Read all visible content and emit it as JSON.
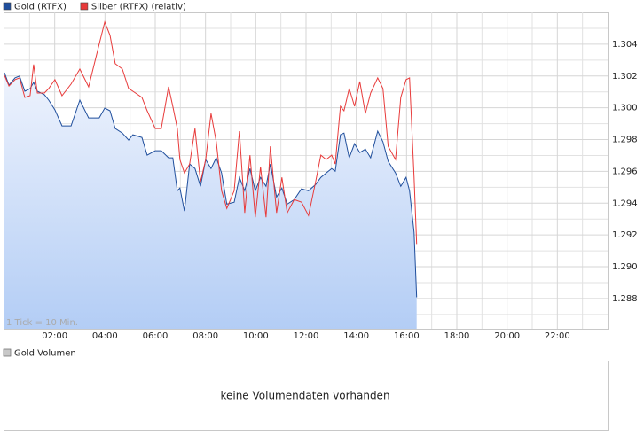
{
  "chart_data": {
    "type": "line",
    "x": [
      0,
      0.18,
      0.42,
      0.6,
      0.81,
      1.02,
      1.16,
      1.31,
      1.59,
      1.76,
      2.01,
      2.29,
      2.65,
      3.0,
      3.35,
      3.77,
      3.99,
      4.2,
      4.41,
      4.69,
      4.94,
      5.11,
      5.47,
      5.68,
      6.0,
      6.24,
      6.53,
      6.7,
      6.88,
      6.98,
      7.16,
      7.37,
      7.58,
      7.8,
      8.01,
      8.22,
      8.43,
      8.64,
      8.85,
      9.14,
      9.35,
      9.56,
      9.77,
      9.98,
      10.19,
      10.41,
      10.58,
      10.83,
      11.04,
      11.25,
      11.53,
      11.82,
      12.1,
      12.38,
      12.59,
      12.8,
      13.02,
      13.16,
      13.37,
      13.51,
      13.72,
      13.93,
      14.14,
      14.36,
      14.57,
      14.85,
      15.06,
      15.27,
      15.56,
      15.77,
      15.98,
      16.12,
      16.3,
      16.4
    ],
    "series": [
      {
        "name": "Gold (RTFX)",
        "color": "#1f4e9c",
        "area": true,
        "values": [
          1.30221,
          1.30143,
          1.30188,
          1.302,
          1.30104,
          1.3012,
          1.3016,
          1.30104,
          1.30082,
          1.30048,
          1.29987,
          1.29886,
          1.29886,
          1.30048,
          1.29936,
          1.29936,
          1.29998,
          1.29981,
          1.29869,
          1.29841,
          1.29797,
          1.2983,
          1.29813,
          1.29702,
          1.2973,
          1.2973,
          1.29685,
          1.29685,
          1.29478,
          1.29495,
          1.2935,
          1.29646,
          1.29618,
          1.29506,
          1.29674,
          1.29618,
          1.29685,
          1.2959,
          1.29394,
          1.29406,
          1.29562,
          1.29478,
          1.29618,
          1.29478,
          1.29562,
          1.29506,
          1.29646,
          1.29439,
          1.29495,
          1.29394,
          1.29422,
          1.2949,
          1.29478,
          1.29517,
          1.29562,
          1.2959,
          1.29618,
          1.29601,
          1.2983,
          1.29841,
          1.29685,
          1.29774,
          1.29718,
          1.2974,
          1.29685,
          1.29853,
          1.29786,
          1.29663,
          1.2959,
          1.29506,
          1.29562,
          1.29478,
          1.29216,
          1.28808
        ]
      },
      {
        "name": "Silber (RTFX) (relativ)",
        "color": "#e83a3a",
        "area": false,
        "values": [
          1.30204,
          1.30137,
          1.30177,
          1.30188,
          1.30065,
          1.30076,
          1.30272,
          1.30093,
          1.30093,
          1.30121,
          1.30177,
          1.30076,
          1.30149,
          1.30244,
          1.30132,
          1.304,
          1.3054,
          1.30456,
          1.30277,
          1.30244,
          1.30121,
          1.30104,
          1.30065,
          1.29981,
          1.29869,
          1.29869,
          1.30132,
          1.30009,
          1.29869,
          1.29674,
          1.2959,
          1.29646,
          1.29869,
          1.29534,
          1.29674,
          1.29964,
          1.29786,
          1.29478,
          1.29367,
          1.29478,
          1.29853,
          1.29339,
          1.29702,
          1.29311,
          1.29629,
          1.29311,
          1.29758,
          1.29339,
          1.29562,
          1.29339,
          1.29422,
          1.29406,
          1.29322,
          1.29534,
          1.29702,
          1.29674,
          1.29702,
          1.29646,
          1.30009,
          1.29981,
          1.30121,
          1.30009,
          1.30165,
          1.29964,
          1.30093,
          1.30188,
          1.30121,
          1.29758,
          1.29674,
          1.30065,
          1.30177,
          1.30188,
          1.29562,
          1.29143
        ]
      }
    ],
    "xlim": [
      0,
      24
    ],
    "xticks": [
      {
        "value": 2,
        "label": "02:00"
      },
      {
        "value": 4,
        "label": "04:00"
      },
      {
        "value": 6,
        "label": "06:00"
      },
      {
        "value": 8,
        "label": "08:00"
      },
      {
        "value": 10,
        "label": "10:00"
      },
      {
        "value": 12,
        "label": "12:00"
      },
      {
        "value": 14,
        "label": "14:00"
      },
      {
        "value": 16,
        "label": "16:00"
      },
      {
        "value": 18,
        "label": "18:00"
      },
      {
        "value": 20,
        "label": "20:00"
      },
      {
        "value": 22,
        "label": "22:00"
      }
    ],
    "minor_xticks": [
      1,
      3,
      5,
      7,
      9,
      11,
      13,
      15,
      17,
      19,
      21,
      23
    ],
    "ylim": [
      1.2861,
      1.306
    ],
    "yticks": [
      1.288,
      {
        "value": 1.29,
        "label": "1.290"
      },
      1.292,
      1.294,
      1.296,
      1.298,
      {
        "value": 1.3,
        "label": "1.300"
      },
      1.302,
      1.304
    ],
    "minor_yticks": [
      1.287,
      1.289,
      1.291,
      1.293,
      1.295,
      1.297,
      1.299,
      1.301,
      1.303,
      1.305
    ],
    "grid": true,
    "tick_note": "1 Tick = 10 Min.",
    "volume_panel": {
      "title": "Gold Volumen",
      "color": "#c8c8c8",
      "message": "keine Volumendaten vorhanden"
    }
  }
}
